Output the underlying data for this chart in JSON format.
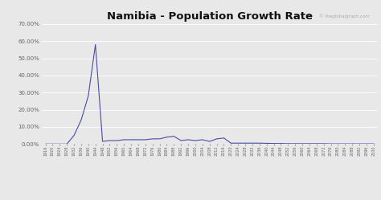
{
  "title": "Namibia - Population Growth Rate",
  "watermark": "© theglobalgraph.com",
  "line_color": "#4a4aaa",
  "background_color": "#e8e8e8",
  "plot_background": "#e8e8e8",
  "grid_color": "#ffffff",
  "ylim": [
    0.0,
    0.7
  ],
  "years": [
    1916,
    1920,
    1924,
    1928,
    1932,
    1936,
    1940,
    1944,
    1948,
    1952,
    1956,
    1960,
    1964,
    1968,
    1972,
    1976,
    1980,
    1984,
    1988,
    1992,
    1996,
    2000,
    2004,
    2008,
    2012,
    2016,
    2020,
    2024,
    2028,
    2032,
    2036,
    2040,
    2044,
    2048,
    2052,
    2056,
    2060,
    2064,
    2068,
    2072,
    2076,
    2080,
    2084,
    2088,
    2092,
    2096,
    2100
  ],
  "values": [
    0.0,
    0.0,
    0.0,
    0.0,
    0.05,
    0.14,
    0.28,
    0.58,
    0.015,
    0.02,
    0.02,
    0.025,
    0.025,
    0.025,
    0.025,
    0.03,
    0.03,
    0.04,
    0.045,
    0.02,
    0.025,
    0.02,
    0.025,
    0.015,
    0.03,
    0.035,
    0.005,
    0.005,
    0.005,
    0.005,
    0.005,
    0.004,
    0.003,
    0.003,
    0.002,
    0.002,
    0.002,
    0.002,
    0.002,
    0.002,
    0.001,
    0.001,
    0.001,
    0.001,
    0.001,
    0.001,
    0.001
  ],
  "yticks": [
    0.0,
    0.1,
    0.2,
    0.3,
    0.4,
    0.5,
    0.6,
    0.7
  ],
  "ytick_labels": [
    "0.00%",
    "10.00%",
    "20.00%",
    "30.00%",
    "40.00%",
    "50.00%",
    "60.00%",
    "70.00%"
  ],
  "xtick_labels": [
    "1916",
    "1920",
    "1924",
    "1928",
    "1932",
    "1936",
    "1940",
    "1944",
    "1948",
    "1952",
    "1956",
    "1960",
    "1964",
    "1968",
    "1972",
    "1976",
    "1980",
    "1984",
    "1988",
    "1992",
    "1996",
    "2000",
    "2004",
    "2008",
    "2012",
    "2016",
    "2020",
    "2024",
    "2028",
    "2032",
    "2036",
    "2040",
    "2044",
    "2048",
    "2052",
    "2056",
    "2060",
    "2064",
    "2068",
    "2072",
    "2076",
    "2080",
    "2084",
    "2088",
    "2092",
    "2096",
    "2100"
  ]
}
